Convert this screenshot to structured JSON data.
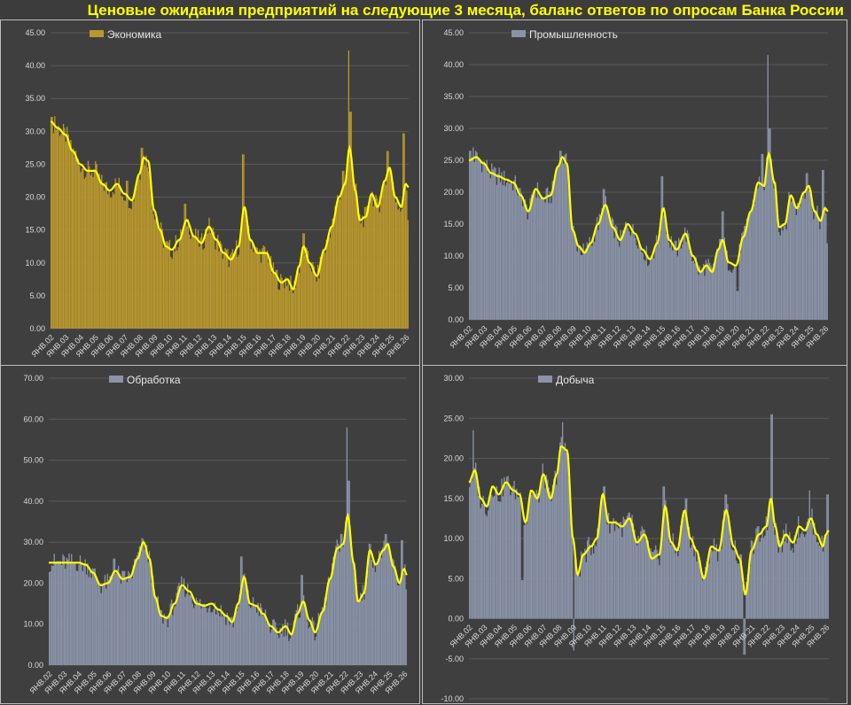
{
  "title": "Ценовые ожидания предприятий на следующие 3 месяца, баланс ответов по опросам Банка России",
  "colors": {
    "gold": "#b8972e",
    "steel": "#8a93a8",
    "smooth": "#ffff00",
    "grid": "#5a5a5a",
    "text": "#d9d9d9"
  },
  "chart_data": [
    {
      "type": "bar",
      "series": [
        {
          "name": "Экономика",
          "color": "#b8972e"
        }
      ],
      "ylim": [
        0,
        45
      ],
      "yticks": [
        "0.00",
        "5.00",
        "10.00",
        "15.00",
        "20.00",
        "25.00",
        "30.00",
        "35.00",
        "40.00",
        "45.00"
      ],
      "xticks": [
        "ЯНВ.02",
        "ЯНВ.03",
        "ЯНВ.04",
        "ЯНВ.05",
        "ЯНВ.06",
        "ЯНВ.07",
        "ЯНВ.08",
        "ЯНВ.09",
        "ЯНВ.10",
        "ЯНВ.11",
        "ЯНВ.12",
        "ЯНВ.13",
        "ЯНВ.14",
        "ЯНВ.15",
        "ЯНВ.16",
        "ЯНВ.17",
        "ЯНВ.18",
        "ЯНВ.19",
        "ЯНВ.20",
        "ЯНВ.21",
        "ЯНВ.22",
        "ЯНВ.23",
        "ЯНВ.24",
        "ЯНВ.25",
        "ЯНВ.26"
      ],
      "x_range": [
        2002.0,
        2026.2
      ],
      "anchors": [
        [
          2002.0,
          31.5
        ],
        [
          2002.5,
          30.5
        ],
        [
          2003.0,
          29.5
        ],
        [
          2003.5,
          27.0
        ],
        [
          2004.0,
          25.0
        ],
        [
          2004.5,
          24.0
        ],
        [
          2005.0,
          24.0
        ],
        [
          2005.5,
          22.0
        ],
        [
          2006.0,
          21.0
        ],
        [
          2006.5,
          22.0
        ],
        [
          2007.0,
          20.5
        ],
        [
          2007.5,
          19.5
        ],
        [
          2008.0,
          23.5
        ],
        [
          2008.3,
          26.0
        ],
        [
          2008.6,
          25.5
        ],
        [
          2009.0,
          18.0
        ],
        [
          2009.4,
          15.0
        ],
        [
          2009.8,
          12.5
        ],
        [
          2010.2,
          12.0
        ],
        [
          2010.7,
          13.5
        ],
        [
          2011.2,
          16.5
        ],
        [
          2011.7,
          14.0
        ],
        [
          2012.2,
          13.0
        ],
        [
          2012.7,
          15.5
        ],
        [
          2013.2,
          13.5
        ],
        [
          2013.7,
          11.5
        ],
        [
          2014.2,
          10.5
        ],
        [
          2014.7,
          12.5
        ],
        [
          2015.1,
          18.5
        ],
        [
          2015.5,
          13.5
        ],
        [
          2016.0,
          11.5
        ],
        [
          2016.6,
          11.5
        ],
        [
          2017.1,
          8.5
        ],
        [
          2017.6,
          7.0
        ],
        [
          2018.0,
          7.5
        ],
        [
          2018.4,
          6.0
        ],
        [
          2018.8,
          9.5
        ],
        [
          2019.1,
          12.5
        ],
        [
          2019.5,
          10.0
        ],
        [
          2020.0,
          8.0
        ],
        [
          2020.5,
          12.0
        ],
        [
          2021.0,
          15.5
        ],
        [
          2021.5,
          20.0
        ],
        [
          2021.9,
          22.0
        ],
        [
          2022.2,
          27.5
        ],
        [
          2022.6,
          21.0
        ],
        [
          2022.9,
          16.5
        ],
        [
          2023.3,
          17.0
        ],
        [
          2023.7,
          20.5
        ],
        [
          2024.1,
          18.5
        ],
        [
          2024.6,
          22.5
        ],
        [
          2024.9,
          24.5
        ],
        [
          2025.3,
          20.0
        ],
        [
          2025.7,
          18.5
        ],
        [
          2026.0,
          22.0
        ],
        [
          2026.2,
          21.5
        ]
      ],
      "bar_spikes": [
        [
          2002.1,
          32.2
        ],
        [
          2002.3,
          32.3
        ],
        [
          2007.2,
          22.5
        ],
        [
          2008.2,
          27.5
        ],
        [
          2011.1,
          19.0
        ],
        [
          2015.0,
          26.5
        ],
        [
          2019.1,
          14.5
        ],
        [
          2021.8,
          24.0
        ],
        [
          2022.15,
          42.3
        ],
        [
          2022.25,
          33.0
        ],
        [
          2024.8,
          27.0
        ],
        [
          2025.85,
          29.7
        ],
        [
          2026.15,
          16.5
        ]
      ]
    },
    {
      "type": "bar",
      "series": [
        {
          "name": "Промышленность",
          "color": "#8a93a8"
        }
      ],
      "ylim": [
        0,
        45
      ],
      "yticks": [
        "0.00",
        "5.00",
        "10.00",
        "15.00",
        "20.00",
        "25.00",
        "30.00",
        "35.00",
        "40.00",
        "45.00"
      ],
      "xticks": [
        "ЯНВ.02",
        "ЯНВ.03",
        "ЯНВ.04",
        "ЯНВ.05",
        "ЯНВ.06",
        "ЯНВ.07",
        "ЯНВ.08",
        "ЯНВ.09",
        "ЯНВ.10",
        "ЯНВ.11",
        "ЯНВ.12",
        "ЯНВ.13",
        "ЯНВ.14",
        "ЯНВ.15",
        "ЯНВ.16",
        "ЯНВ.17",
        "ЯНВ.18",
        "ЯНВ.19",
        "ЯНВ.20",
        "ЯНВ.21",
        "ЯНВ.22",
        "ЯНВ.23",
        "ЯНВ.24",
        "ЯНВ.25",
        "ЯНВ.26"
      ],
      "x_range": [
        2002.0,
        2026.2
      ],
      "anchors": [
        [
          2002.0,
          25.0
        ],
        [
          2002.5,
          25.5
        ],
        [
          2003.0,
          24.5
        ],
        [
          2003.5,
          23.0
        ],
        [
          2004.0,
          22.5
        ],
        [
          2004.5,
          22.0
        ],
        [
          2005.0,
          21.5
        ],
        [
          2005.5,
          19.5
        ],
        [
          2006.0,
          17.0
        ],
        [
          2006.5,
          20.5
        ],
        [
          2007.0,
          19.0
        ],
        [
          2007.5,
          19.5
        ],
        [
          2008.0,
          24.0
        ],
        [
          2008.3,
          25.5
        ],
        [
          2008.6,
          24.5
        ],
        [
          2009.0,
          14.0
        ],
        [
          2009.4,
          11.5
        ],
        [
          2009.8,
          10.5
        ],
        [
          2010.2,
          12.0
        ],
        [
          2010.7,
          15.0
        ],
        [
          2011.2,
          18.0
        ],
        [
          2011.7,
          14.5
        ],
        [
          2012.2,
          12.5
        ],
        [
          2012.7,
          15.0
        ],
        [
          2013.2,
          13.5
        ],
        [
          2013.7,
          11.0
        ],
        [
          2014.2,
          9.5
        ],
        [
          2014.7,
          12.0
        ],
        [
          2015.1,
          17.5
        ],
        [
          2015.5,
          12.5
        ],
        [
          2016.0,
          11.0
        ],
        [
          2016.6,
          13.5
        ],
        [
          2017.1,
          10.0
        ],
        [
          2017.6,
          7.5
        ],
        [
          2018.0,
          8.5
        ],
        [
          2018.4,
          7.5
        ],
        [
          2018.8,
          11.0
        ],
        [
          2019.1,
          12.5
        ],
        [
          2019.5,
          9.0
        ],
        [
          2020.0,
          8.5
        ],
        [
          2020.5,
          13.0
        ],
        [
          2021.0,
          17.0
        ],
        [
          2021.5,
          21.5
        ],
        [
          2021.9,
          21.0
        ],
        [
          2022.2,
          26.0
        ],
        [
          2022.6,
          21.5
        ],
        [
          2022.9,
          14.5
        ],
        [
          2023.3,
          15.0
        ],
        [
          2023.7,
          19.5
        ],
        [
          2024.1,
          17.5
        ],
        [
          2024.6,
          20.0
        ],
        [
          2024.9,
          21.0
        ],
        [
          2025.3,
          17.0
        ],
        [
          2025.7,
          15.5
        ],
        [
          2026.0,
          17.5
        ],
        [
          2026.2,
          17.0
        ]
      ],
      "bar_spikes": [
        [
          2002.1,
          26.5
        ],
        [
          2002.3,
          27.0
        ],
        [
          2008.2,
          26.5
        ],
        [
          2011.1,
          20.5
        ],
        [
          2015.0,
          22.5
        ],
        [
          2019.1,
          17.0
        ],
        [
          2021.8,
          26.0
        ],
        [
          2022.15,
          41.5
        ],
        [
          2022.25,
          30.0
        ],
        [
          2024.8,
          23.0
        ],
        [
          2025.85,
          23.5
        ],
        [
          2026.15,
          12.0
        ],
        [
          2020.1,
          4.5
        ]
      ]
    },
    {
      "type": "bar",
      "series": [
        {
          "name": "Обработка",
          "color": "#8a93a8"
        }
      ],
      "ylim": [
        0,
        70
      ],
      "yticks": [
        "0.00",
        "10.00",
        "20.00",
        "30.00",
        "40.00",
        "50.00",
        "60.00",
        "70.00"
      ],
      "xticks": [
        "ЯНВ.02",
        "ЯНВ.03",
        "ЯНВ.04",
        "ЯНВ.05",
        "ЯНВ.06",
        "ЯНВ.07",
        "ЯНВ.08",
        "ЯНВ.09",
        "ЯНВ.10",
        "ЯНВ.11",
        "ЯНВ.12",
        "ЯНВ.13",
        "ЯНВ.14",
        "ЯНВ.15",
        "ЯНВ.16",
        "ЯНВ.17",
        "ЯНВ.18",
        "ЯНВ.19",
        "ЯНВ.20",
        "ЯНВ.21",
        "ЯНВ.22",
        "ЯНВ.23",
        "ЯНВ.24",
        "ЯНВ.25",
        "ЯНВ.26"
      ],
      "x_range": [
        2002.0,
        2026.2
      ],
      "anchors": [
        [
          2002.0,
          25.0
        ],
        [
          2003.0,
          25.0
        ],
        [
          2004.0,
          25.0
        ],
        [
          2004.5,
          24.5
        ],
        [
          2005.0,
          22.5
        ],
        [
          2005.5,
          19.5
        ],
        [
          2006.0,
          20.0
        ],
        [
          2006.5,
          23.0
        ],
        [
          2007.0,
          21.0
        ],
        [
          2007.5,
          21.5
        ],
        [
          2008.0,
          26.0
        ],
        [
          2008.4,
          30.0
        ],
        [
          2008.8,
          26.0
        ],
        [
          2009.2,
          16.5
        ],
        [
          2009.6,
          12.0
        ],
        [
          2010.0,
          11.5
        ],
        [
          2010.5,
          15.0
        ],
        [
          2011.0,
          19.5
        ],
        [
          2011.5,
          18.0
        ],
        [
          2012.0,
          15.0
        ],
        [
          2012.5,
          14.5
        ],
        [
          2013.0,
          15.0
        ],
        [
          2013.5,
          13.5
        ],
        [
          2014.0,
          12.0
        ],
        [
          2014.4,
          10.5
        ],
        [
          2014.8,
          15.0
        ],
        [
          2015.2,
          21.5
        ],
        [
          2015.6,
          15.0
        ],
        [
          2016.0,
          14.5
        ],
        [
          2016.5,
          12.5
        ],
        [
          2017.0,
          9.5
        ],
        [
          2017.5,
          8.0
        ],
        [
          2018.0,
          9.5
        ],
        [
          2018.4,
          7.5
        ],
        [
          2018.8,
          12.5
        ],
        [
          2019.2,
          15.5
        ],
        [
          2019.6,
          11.0
        ],
        [
          2020.0,
          8.0
        ],
        [
          2020.5,
          13.0
        ],
        [
          2021.0,
          21.0
        ],
        [
          2021.5,
          28.5
        ],
        [
          2021.9,
          29.5
        ],
        [
          2022.2,
          36.5
        ],
        [
          2022.6,
          25.0
        ],
        [
          2022.9,
          15.5
        ],
        [
          2023.3,
          17.5
        ],
        [
          2023.7,
          28.0
        ],
        [
          2024.1,
          24.5
        ],
        [
          2024.6,
          28.0
        ],
        [
          2024.9,
          29.5
        ],
        [
          2025.3,
          24.0
        ],
        [
          2025.7,
          20.0
        ],
        [
          2026.0,
          23.5
        ],
        [
          2026.2,
          22.0
        ]
      ],
      "bar_spikes": [
        [
          2006.4,
          26.0
        ],
        [
          2008.3,
          31.0
        ],
        [
          2015.0,
          26.5
        ],
        [
          2019.1,
          22.0
        ],
        [
          2021.8,
          32.0
        ],
        [
          2022.15,
          58.0
        ],
        [
          2022.3,
          45.0
        ],
        [
          2024.8,
          32.0
        ],
        [
          2025.85,
          30.5
        ],
        [
          2026.15,
          18.5
        ]
      ]
    },
    {
      "type": "bar",
      "series": [
        {
          "name": "Добыча",
          "color": "#8a93a8"
        }
      ],
      "ylim": [
        -10,
        30
      ],
      "yticks": [
        "-10.00",
        "-5.00",
        "0.00",
        "5.00",
        "10.00",
        "15.00",
        "20.00",
        "25.00",
        "30.00"
      ],
      "xticks": [
        "ЯНВ.02",
        "ЯНВ.03",
        "ЯНВ.04",
        "ЯНВ.05",
        "ЯНВ.06",
        "ЯНВ.07",
        "ЯНВ.08",
        "ЯНВ.09",
        "ЯНВ.10",
        "ЯНВ.11",
        "ЯНВ.12",
        "ЯНВ.13",
        "ЯНВ.14",
        "ЯНВ.15",
        "ЯНВ.16",
        "ЯНВ.17",
        "ЯНВ.18",
        "ЯНВ.19",
        "ЯНВ.20",
        "ЯНВ.21",
        "ЯНВ.22",
        "ЯНВ.23",
        "ЯНВ.24",
        "ЯНВ.25",
        "ЯНВ.26"
      ],
      "x_range": [
        2002.0,
        2026.2
      ],
      "anchors": [
        [
          2002.0,
          17.0
        ],
        [
          2002.4,
          18.5
        ],
        [
          2002.8,
          15.0
        ],
        [
          2003.2,
          14.0
        ],
        [
          2003.6,
          16.5
        ],
        [
          2004.0,
          15.5
        ],
        [
          2004.5,
          17.0
        ],
        [
          2005.0,
          16.0
        ],
        [
          2005.4,
          15.5
        ],
        [
          2005.8,
          12.0
        ],
        [
          2006.2,
          16.0
        ],
        [
          2006.6,
          15.0
        ],
        [
          2007.0,
          18.0
        ],
        [
          2007.5,
          15.0
        ],
        [
          2007.9,
          18.0
        ],
        [
          2008.2,
          21.5
        ],
        [
          2008.6,
          21.0
        ],
        [
          2009.0,
          10.0
        ],
        [
          2009.3,
          5.5
        ],
        [
          2009.7,
          8.0
        ],
        [
          2010.2,
          9.0
        ],
        [
          2010.6,
          10.0
        ],
        [
          2011.0,
          15.5
        ],
        [
          2011.4,
          12.0
        ],
        [
          2011.8,
          12.0
        ],
        [
          2012.3,
          11.5
        ],
        [
          2012.8,
          12.5
        ],
        [
          2013.3,
          9.5
        ],
        [
          2013.8,
          10.5
        ],
        [
          2014.3,
          7.5
        ],
        [
          2014.8,
          8.0
        ],
        [
          2015.2,
          14.0
        ],
        [
          2015.6,
          9.5
        ],
        [
          2016.0,
          8.5
        ],
        [
          2016.5,
          13.5
        ],
        [
          2016.9,
          10.0
        ],
        [
          2017.3,
          8.5
        ],
        [
          2017.8,
          5.0
        ],
        [
          2018.3,
          9.0
        ],
        [
          2018.8,
          8.5
        ],
        [
          2019.3,
          13.5
        ],
        [
          2019.8,
          9.0
        ],
        [
          2020.2,
          7.5
        ],
        [
          2020.6,
          3.0
        ],
        [
          2021.0,
          8.5
        ],
        [
          2021.5,
          10.5
        ],
        [
          2022.0,
          11.5
        ],
        [
          2022.3,
          15.0
        ],
        [
          2022.6,
          11.5
        ],
        [
          2022.9,
          9.0
        ],
        [
          2023.3,
          10.5
        ],
        [
          2023.8,
          9.5
        ],
        [
          2024.2,
          11.5
        ],
        [
          2024.6,
          11.0
        ],
        [
          2025.0,
          12.5
        ],
        [
          2025.4,
          10.5
        ],
        [
          2025.8,
          9.0
        ],
        [
          2026.0,
          10.5
        ],
        [
          2026.2,
          11.0
        ]
      ],
      "bar_spikes": [
        [
          2002.3,
          23.5
        ],
        [
          2005.6,
          4.8
        ],
        [
          2008.3,
          24.5
        ],
        [
          2009.05,
          -4.0
        ],
        [
          2011.1,
          16.5
        ],
        [
          2015.1,
          16.5
        ],
        [
          2016.6,
          15.0
        ],
        [
          2019.3,
          15.5
        ],
        [
          2020.5,
          -4.5
        ],
        [
          2022.35,
          25.5
        ],
        [
          2024.9,
          16.0
        ],
        [
          2026.1,
          15.5
        ]
      ]
    }
  ]
}
